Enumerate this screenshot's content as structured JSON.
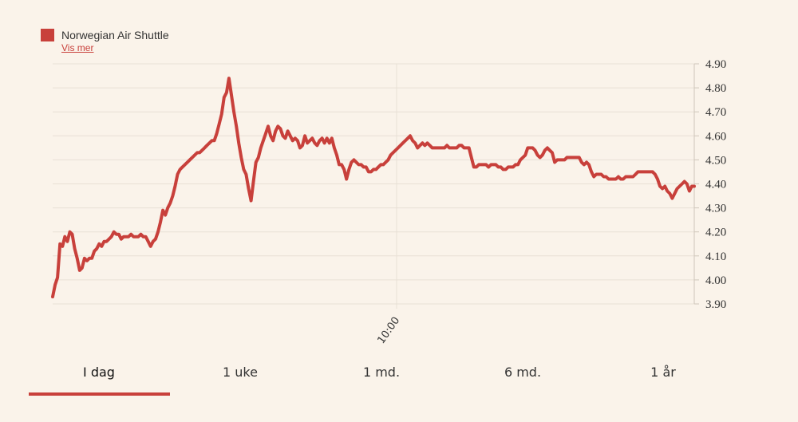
{
  "legend": {
    "label": "Norwegian Air Shuttle",
    "link": "Vis mer",
    "color": "#c8403b"
  },
  "tabs": [
    {
      "label": "I dag",
      "active": true
    },
    {
      "label": "1 uke",
      "active": false
    },
    {
      "label": "1 md.",
      "active": false
    },
    {
      "label": "6 md.",
      "active": false
    },
    {
      "label": "1 år",
      "active": false
    }
  ],
  "chart_data": {
    "type": "line",
    "title": "",
    "xlabel": "",
    "ylabel": "",
    "ylim": [
      3.9,
      4.9
    ],
    "yticks": [
      "4.90",
      "4.80",
      "4.70",
      "4.60",
      "4.50",
      "4.40",
      "4.30",
      "4.20",
      "4.10",
      "4.00",
      "3.90"
    ],
    "xticks": [
      "10:00"
    ],
    "grid": true,
    "y_axis_position": "right",
    "series": [
      {
        "name": "Norwegian Air Shuttle",
        "color": "#c8403b",
        "values": [
          3.93,
          3.98,
          4.01,
          4.15,
          4.14,
          4.18,
          4.16,
          4.2,
          4.19,
          4.13,
          4.09,
          4.04,
          4.05,
          4.09,
          4.08,
          4.09,
          4.09,
          4.12,
          4.13,
          4.15,
          4.14,
          4.16,
          4.16,
          4.17,
          4.18,
          4.2,
          4.19,
          4.19,
          4.17,
          4.18,
          4.18,
          4.18,
          4.19,
          4.18,
          4.18,
          4.18,
          4.19,
          4.18,
          4.18,
          4.16,
          4.14,
          4.16,
          4.17,
          4.2,
          4.24,
          4.29,
          4.27,
          4.3,
          4.32,
          4.35,
          4.39,
          4.44,
          4.46,
          4.47,
          4.48,
          4.49,
          4.5,
          4.51,
          4.52,
          4.53,
          4.53,
          4.54,
          4.55,
          4.56,
          4.57,
          4.58,
          4.58,
          4.61,
          4.65,
          4.69,
          4.76,
          4.78,
          4.84,
          4.77,
          4.7,
          4.64,
          4.57,
          4.51,
          4.46,
          4.44,
          4.38,
          4.33,
          4.41,
          4.49,
          4.51,
          4.55,
          4.58,
          4.61,
          4.64,
          4.6,
          4.58,
          4.62,
          4.64,
          4.63,
          4.6,
          4.59,
          4.62,
          4.6,
          4.58,
          4.59,
          4.58,
          4.55,
          4.56,
          4.6,
          4.57,
          4.58,
          4.59,
          4.57,
          4.56,
          4.58,
          4.59,
          4.57,
          4.59,
          4.57,
          4.59,
          4.55,
          4.52,
          4.48,
          4.48,
          4.46,
          4.42,
          4.46,
          4.49,
          4.5,
          4.49,
          4.48,
          4.48,
          4.47,
          4.47,
          4.45,
          4.45,
          4.46,
          4.46,
          4.47,
          4.48,
          4.48,
          4.49,
          4.5,
          4.52,
          4.53,
          4.54,
          4.55,
          4.56,
          4.57,
          4.58,
          4.59,
          4.6,
          4.58,
          4.57,
          4.55,
          4.56,
          4.57,
          4.56,
          4.57,
          4.56,
          4.55,
          4.55,
          4.55,
          4.55,
          4.55,
          4.55,
          4.56,
          4.55,
          4.55,
          4.55,
          4.55,
          4.56,
          4.56,
          4.55,
          4.55,
          4.55,
          4.51,
          4.47,
          4.47,
          4.48,
          4.48,
          4.48,
          4.48,
          4.47,
          4.48,
          4.48,
          4.48,
          4.47,
          4.47,
          4.46,
          4.46,
          4.47,
          4.47,
          4.47,
          4.48,
          4.48,
          4.5,
          4.51,
          4.52,
          4.55,
          4.55,
          4.55,
          4.54,
          4.52,
          4.51,
          4.52,
          4.54,
          4.55,
          4.54,
          4.53,
          4.49,
          4.5,
          4.5,
          4.5,
          4.5,
          4.51,
          4.51,
          4.51,
          4.51,
          4.51,
          4.51,
          4.49,
          4.48,
          4.49,
          4.48,
          4.45,
          4.43,
          4.44,
          4.44,
          4.44,
          4.43,
          4.43,
          4.42,
          4.42,
          4.42,
          4.42,
          4.43,
          4.42,
          4.42,
          4.43,
          4.43,
          4.43,
          4.43,
          4.44,
          4.45,
          4.45,
          4.45,
          4.45,
          4.45,
          4.45,
          4.45,
          4.44,
          4.42,
          4.39,
          4.38,
          4.39,
          4.37,
          4.36,
          4.34,
          4.36,
          4.38,
          4.39,
          4.4,
          4.41,
          4.4,
          4.37,
          4.39,
          4.39
        ]
      }
    ]
  }
}
